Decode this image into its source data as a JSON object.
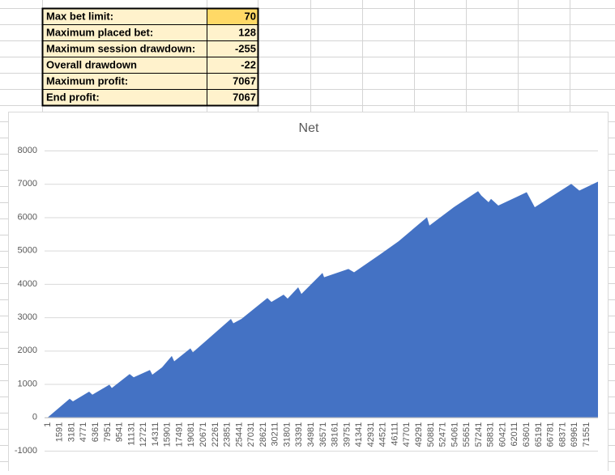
{
  "table": {
    "rows": [
      [
        "Max bet limit:",
        70
      ],
      [
        "Maximum placed bet:",
        128
      ],
      [
        "Maximum session drawdown:",
        -255
      ],
      [
        "Overall drawdown",
        -22
      ],
      [
        "Maximum profit:",
        7067
      ],
      [
        "End profit:",
        7067
      ]
    ]
  },
  "chart_data": {
    "type": "area",
    "title": "Net",
    "x": [
      1,
      2906,
      3336,
      5488,
      5918,
      8178,
      8501,
      10868,
      11406,
      13558,
      13881,
      15172,
      16463,
      16786,
      18938,
      19260,
      24317,
      24640,
      25716,
      29160,
      29697,
      31311,
      31849,
      33248,
      33678,
      36476,
      36691,
      39919,
      40672,
      44222,
      46589,
      50355,
      50678,
      53906,
      57134,
      57564,
      58533,
      58856,
      59824,
      63590,
      64666,
      69508,
      70584,
      73059
    ],
    "values": [
      0,
      560,
      480,
      770,
      680,
      980,
      880,
      1300,
      1200,
      1420,
      1280,
      1500,
      1840,
      1680,
      2070,
      1950,
      2950,
      2820,
      2950,
      3580,
      3460,
      3680,
      3560,
      3900,
      3700,
      4330,
      4200,
      4450,
      4350,
      4900,
      5280,
      6000,
      5750,
      6300,
      6780,
      6650,
      6450,
      6550,
      6350,
      6750,
      6300,
      7000,
      6800,
      7067
    ],
    "color": "#4472c4",
    "xlim": [
      1,
      73059
    ],
    "xticks": [
      1,
      1591,
      3181,
      4771,
      6361,
      7951,
      9541,
      11131,
      12721,
      14311,
      15901,
      17491,
      19081,
      20671,
      22261,
      23851,
      25441,
      27031,
      28621,
      30211,
      31801,
      33391,
      34981,
      36571,
      38161,
      39751,
      41341,
      42931,
      44521,
      46111,
      47701,
      49291,
      50881,
      52471,
      54061,
      55651,
      57241,
      58831,
      60421,
      62011,
      63601,
      65191,
      66781,
      68371,
      69961,
      71551
    ],
    "ylim": [
      -1000,
      8000
    ],
    "yticks": [
      -1000,
      0,
      1000,
      2000,
      3000,
      4000,
      5000,
      6000,
      7000,
      8000
    ],
    "grid": true
  }
}
